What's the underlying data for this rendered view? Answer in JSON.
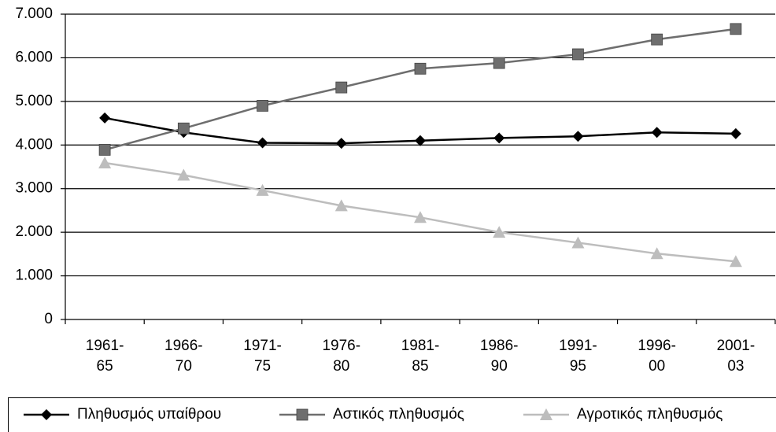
{
  "chart_data": {
    "type": "line",
    "categories": [
      "1961-65",
      "1966-70",
      "1971-75",
      "1976-80",
      "1981-85",
      "1986-90",
      "1991-95",
      "1996-00",
      "2001-03"
    ],
    "series": [
      {
        "name": "Πληθυσμός υπαίθρου",
        "color": "#000000",
        "marker": "diamond",
        "values": [
          4620,
          4290,
          4050,
          4040,
          4100,
          4160,
          4200,
          4290,
          4260
        ]
      },
      {
        "name": "Αστικός πληθυσμός",
        "color": "#6e6e6e",
        "marker": "square",
        "values": [
          3890,
          4380,
          4900,
          5320,
          5750,
          5880,
          6080,
          6420,
          6660
        ]
      },
      {
        "name": "Αγροτικός πληθυσμός",
        "color": "#bdbdbd",
        "marker": "triangle",
        "values": [
          3590,
          3310,
          2960,
          2610,
          2340,
          2000,
          1760,
          1510,
          1330
        ]
      }
    ],
    "ylim": [
      0,
      7000
    ],
    "yticks": [
      0,
      {
        "value": 1000,
        "label": "1.000"
      },
      {
        "value": 2000,
        "label": "2.000"
      },
      {
        "value": 3000,
        "label": "3.000"
      },
      {
        "value": 4000,
        "label": "4.000"
      },
      {
        "value": 5000,
        "label": "5.000"
      },
      {
        "value": 6000,
        "label": "6.000"
      },
      {
        "value": 7000,
        "label": "7.000"
      }
    ],
    "grid": true,
    "legend": "bottom"
  }
}
